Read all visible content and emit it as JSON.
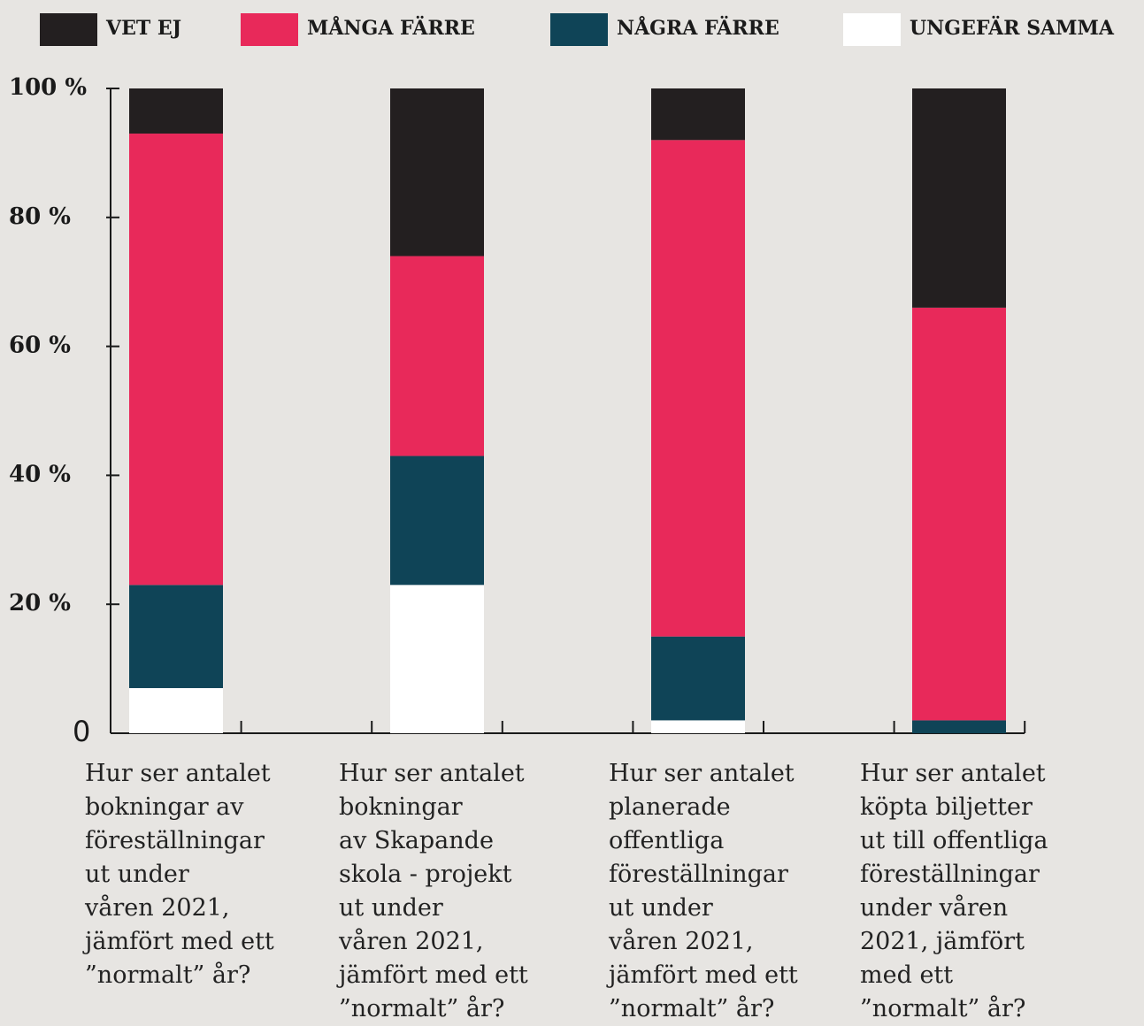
{
  "chart_data": {
    "type": "stacked_bar",
    "categories": [
      "Hur ser antalet\nbokningar av\nföreställningar\nut under\nvåren 2021,\njämfört med ett\n”normalt” år?",
      "Hur ser antalet\nbokningar\nav Skapande\nskola - projekt\nut under\nvåren 2021,\njämfört med ett\n”normalt” år?",
      "Hur ser antalet\nplanerade\noffentliga\nföreställningar\nut under\nvåren 2021,\njämfört med ett\n”normalt” år?",
      "Hur ser antalet\nköpta biljetter\nut till offentliga\nföreställningar\nunder våren\n2021, jämfört\nmed ett\n”normalt” år?"
    ],
    "series": [
      {
        "name": "VET EJ",
        "color": "#231f20",
        "values": [
          7,
          26,
          8,
          34
        ]
      },
      {
        "name": "MÅNGA FÄRRE",
        "color": "#e8295a",
        "values": [
          70,
          31,
          77,
          64
        ]
      },
      {
        "name": "NÅGRA FÄRRE",
        "color": "#0f4457",
        "values": [
          16,
          20,
          13,
          2
        ]
      },
      {
        "name": "UNGEFÄR SAMMA",
        "color": "#ffffff",
        "values": [
          7,
          23,
          2,
          0
        ]
      }
    ],
    "ylim": [
      0,
      100
    ],
    "yticks": [
      0,
      {
        "value": 20,
        "label": "20 %"
      },
      {
        "value": 40,
        "label": "40 %"
      },
      {
        "value": 60,
        "label": "60 %"
      },
      {
        "value": 80,
        "label": "80 %"
      },
      {
        "value": 100,
        "label": "100 %"
      }
    ],
    "legend": "top"
  }
}
